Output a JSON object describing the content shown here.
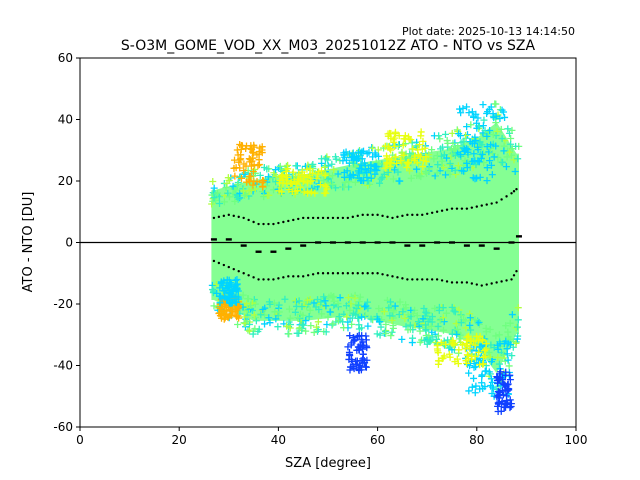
{
  "plot_date": "Plot date: 2025-10-13 14:14:50",
  "chart_data": {
    "type": "scatter",
    "title": "S-O3M_GOME_VOD_XX_M03_20251012Z ATO - NTO vs SZA",
    "xlabel": "SZA [degree]",
    "ylabel": "ATO - NTO [DU]",
    "xlim": [
      0,
      100
    ],
    "ylim": [
      -60,
      60
    ],
    "xticks": [
      0,
      20,
      40,
      60,
      80,
      100
    ],
    "yticks": [
      -60,
      -40,
      -20,
      0,
      20,
      40,
      60
    ],
    "grid": false,
    "legend": "none",
    "marker": "+",
    "colormap": "jet",
    "colors": {
      "cyan": "#00d4ff",
      "blue": "#1040ff",
      "green": "#70ff80",
      "aqua": "#30f0c0",
      "yellow": "#e8ff10",
      "orange": "#ffb000",
      "lime": "#b0ff40"
    },
    "zero_line": 0,
    "scatter_envelope": {
      "sza_min": 26.5,
      "sza_max": 88.5,
      "upper": [
        [
          27,
          20
        ],
        [
          35,
          24
        ],
        [
          45,
          26
        ],
        [
          55,
          30
        ],
        [
          65,
          33
        ],
        [
          75,
          36
        ],
        [
          80,
          40
        ],
        [
          84,
          46
        ],
        [
          88,
          34
        ]
      ],
      "lower": [
        [
          27,
          -22
        ],
        [
          35,
          -30
        ],
        [
          45,
          -30
        ],
        [
          55,
          -28
        ],
        [
          65,
          -32
        ],
        [
          75,
          -35
        ],
        [
          80,
          -40
        ],
        [
          84,
          -50
        ],
        [
          88,
          -35
        ]
      ]
    },
    "median_series": {
      "x": [
        27,
        30,
        33,
        36,
        39,
        42,
        45,
        48,
        51,
        54,
        57,
        60,
        63,
        66,
        69,
        72,
        75,
        78,
        81,
        84,
        87,
        88.5
      ],
      "y": [
        1,
        1,
        -1,
        -3,
        -3,
        -2,
        -1,
        0,
        0,
        0,
        0,
        0,
        0,
        -1,
        -1,
        0,
        0,
        -1,
        -1,
        -2,
        0,
        2
      ]
    },
    "upper_bound_series": {
      "x": [
        27,
        30,
        33,
        36,
        39,
        42,
        45,
        48,
        51,
        54,
        57,
        60,
        63,
        66,
        69,
        72,
        75,
        78,
        81,
        84,
        87,
        88.5
      ],
      "y": [
        8,
        9,
        8,
        6,
        6,
        7,
        8,
        8,
        8,
        8,
        9,
        9,
        8,
        9,
        9,
        10,
        11,
        11,
        12,
        13,
        16,
        18
      ]
    },
    "lower_bound_series": {
      "x": [
        27,
        30,
        33,
        36,
        39,
        42,
        45,
        48,
        51,
        54,
        57,
        60,
        63,
        66,
        69,
        72,
        75,
        78,
        81,
        84,
        87,
        88.5
      ],
      "y": [
        -6,
        -8,
        -10,
        -12,
        -12,
        -11,
        -11,
        -10,
        -10,
        -10,
        -10,
        -10,
        -11,
        -12,
        -12,
        -12,
        -13,
        -13,
        -14,
        -13,
        -12,
        -8
      ]
    },
    "clusters": [
      {
        "color": "orange",
        "x": [
          31,
          37
        ],
        "y": [
          18,
          32
        ]
      },
      {
        "color": "yellow",
        "x": [
          40,
          50
        ],
        "y": [
          16,
          24
        ]
      },
      {
        "color": "cyan",
        "x": [
          53,
          60
        ],
        "y": [
          20,
          30
        ]
      },
      {
        "color": "yellow",
        "x": [
          61,
          70
        ],
        "y": [
          24,
          36
        ]
      },
      {
        "color": "cyan",
        "x": [
          76,
          86
        ],
        "y": [
          20,
          45
        ]
      },
      {
        "color": "blue",
        "x": [
          54,
          58
        ],
        "y": [
          -42,
          -30
        ]
      },
      {
        "color": "orange",
        "x": [
          28,
          32
        ],
        "y": [
          -25,
          -18
        ]
      },
      {
        "color": "cyan",
        "x": [
          28,
          32
        ],
        "y": [
          -20,
          -12
        ]
      },
      {
        "color": "cyan",
        "x": [
          78,
          87
        ],
        "y": [
          -50,
          -32
        ]
      },
      {
        "color": "blue",
        "x": [
          84,
          87
        ],
        "y": [
          -55,
          -42
        ]
      },
      {
        "color": "yellow",
        "x": [
          72,
          82
        ],
        "y": [
          -40,
          -30
        ]
      }
    ]
  }
}
